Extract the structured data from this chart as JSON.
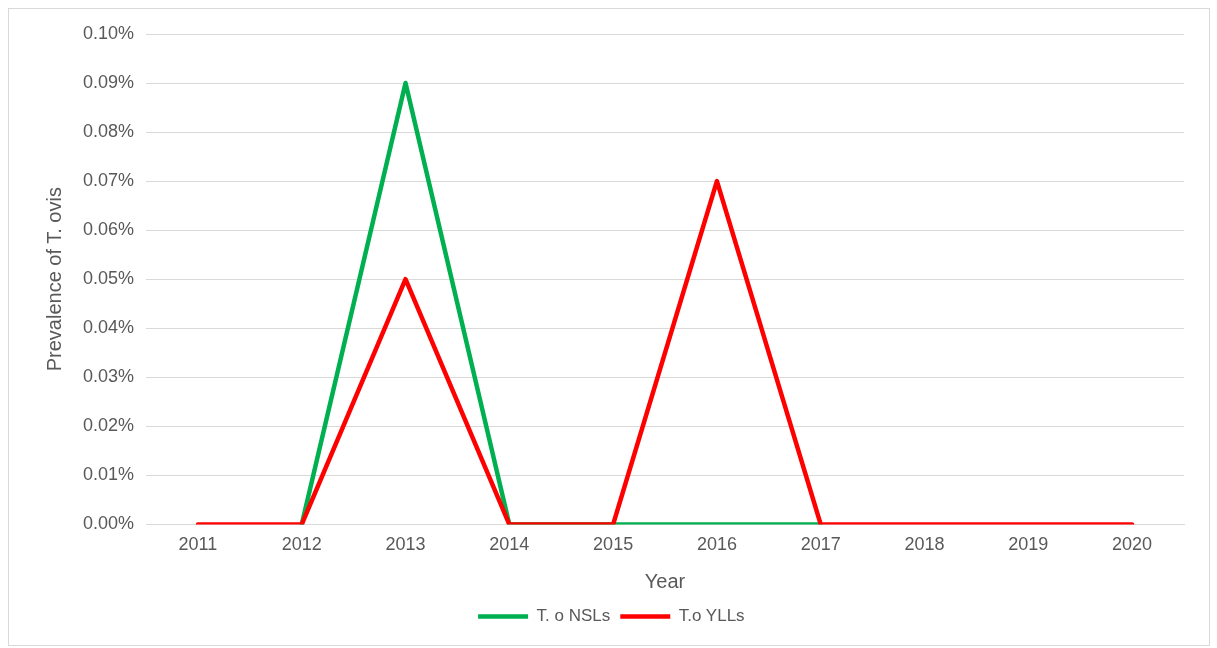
{
  "chart_data": {
    "type": "line",
    "xlabel": "Year",
    "ylabel": "Prevalence of T. ovis",
    "categories": [
      "2011",
      "2012",
      "2013",
      "2014",
      "2015",
      "2016",
      "2017",
      "2018",
      "2019",
      "2020"
    ],
    "series": [
      {
        "name": "T. o NSLs",
        "color": "#00b050",
        "values": [
          null,
          0,
          0.09,
          0,
          0,
          0,
          0,
          null,
          null,
          null
        ]
      },
      {
        "name": "T.o YLLs",
        "color": "#ff0000",
        "values": [
          0,
          0,
          0.05,
          0,
          0,
          0.07,
          0,
          0,
          0,
          0
        ]
      }
    ],
    "ylim": [
      0,
      0.1
    ],
    "yticks": [
      {
        "value": 0,
        "label": "0.00%"
      },
      {
        "value": 0.01,
        "label": "0.01%"
      },
      {
        "value": 0.02,
        "label": "0.02%"
      },
      {
        "value": 0.03,
        "label": "0.03%"
      },
      {
        "value": 0.04,
        "label": "0.04%"
      },
      {
        "value": 0.05,
        "label": "0.05%"
      },
      {
        "value": 0.06,
        "label": "0.06%"
      },
      {
        "value": 0.07,
        "label": "0.07%"
      },
      {
        "value": 0.08,
        "label": "0.08%"
      },
      {
        "value": 0.09,
        "label": "0.09%"
      },
      {
        "value": 0.1,
        "label": "0.10%"
      }
    ],
    "grid": "y",
    "legend": "bottom",
    "marker": "none",
    "line_style": "solid"
  }
}
